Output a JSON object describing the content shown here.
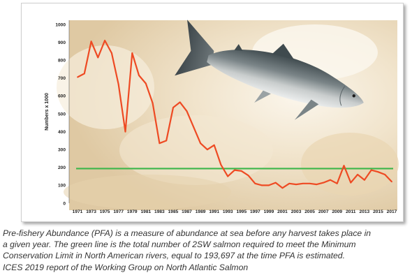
{
  "chart_data": {
    "type": "line",
    "title": "",
    "xlabel": "",
    "ylabel": "Numbers x 1000",
    "xlim": [
      1971,
      2017
    ],
    "ylim": [
      0,
      1000
    ],
    "y_ticks": [
      "0",
      "100",
      "200",
      "300",
      "400",
      "500",
      "600",
      "700",
      "800",
      "900",
      "1000"
    ],
    "x_ticks": [
      "1971",
      "1973",
      "1975",
      "1977",
      "1979",
      "1981",
      "1983",
      "1985",
      "1987",
      "1989",
      "1991",
      "1993",
      "1995",
      "1997",
      "1999",
      "2001",
      "2003",
      "2005",
      "2007",
      "2009",
      "2011",
      "2013",
      "2015",
      "2017"
    ],
    "grid": false,
    "legend": "none",
    "series": [
      {
        "color": "#ee4a23",
        "x": [
          1971,
          1972,
          1973,
          1974,
          1975,
          1976,
          1977,
          1978,
          1979,
          1980,
          1981,
          1982,
          1983,
          1984,
          1985,
          1986,
          1987,
          1988,
          1989,
          1990,
          1991,
          1992,
          1993,
          1994,
          1995,
          1996,
          1997,
          1998,
          1999,
          2000,
          2001,
          2002,
          2003,
          2004,
          2005,
          2006,
          2007,
          2008,
          2009,
          2010,
          2011,
          2012,
          2013,
          2014,
          2015,
          2016,
          2017
        ],
        "values": [
          705,
          725,
          905,
          815,
          910,
          840,
          665,
          400,
          840,
          715,
          670,
          560,
          335,
          350,
          535,
          565,
          515,
          425,
          335,
          300,
          325,
          215,
          150,
          185,
          180,
          155,
          110,
          100,
          100,
          115,
          85,
          110,
          105,
          110,
          110,
          105,
          115,
          130,
          110,
          210,
          115,
          160,
          130,
          185,
          175,
          160,
          120
        ]
      }
    ],
    "reference_line": {
      "value": 193.697,
      "color": "#3cb64a"
    }
  },
  "caption": {
    "lines": [
      "Pre-fishery Abundance (PFA) is a measure of abundance at sea before any harvest takes place in",
      "a given year. The green line is the total number of 2SW salmon required to meet the Minimum",
      "Conservation Limit in North American rivers, equal to 193,697 at the time PFA is estimated.",
      "ICES 2019 report of the Working Group on North Atlantic Salmon"
    ]
  },
  "colors": {
    "series_line": "#ee4a23",
    "conservation_line": "#3cb64a",
    "background_water": "#ecdcc0"
  },
  "illustration": {
    "icon": "salmon-photo-icon"
  }
}
